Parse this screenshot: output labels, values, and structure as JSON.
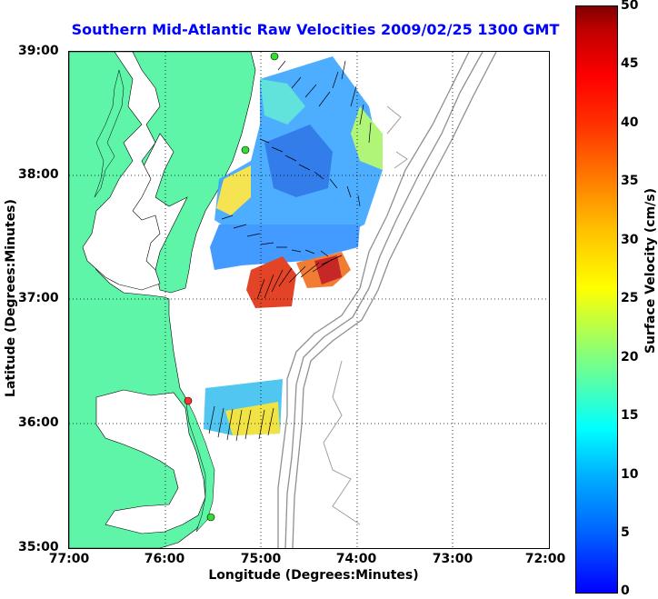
{
  "title": "Southern Mid-Atlantic Raw Velocities 2009/02/25 1300 GMT",
  "axes": {
    "xlabel": "Longitude (Degrees:Minutes)",
    "ylabel": "Latitude (Degrees:Minutes)",
    "xticks": [
      "77:00",
      "76:00",
      "75:00",
      "74:00",
      "73:00",
      "72:00"
    ],
    "yticks": [
      "39:00",
      "38:00",
      "37:00",
      "36:00",
      "35:00"
    ]
  },
  "colorbar": {
    "label": "Surface Velocity (cm/s)",
    "ticks": [
      "50",
      "45",
      "40",
      "35",
      "30",
      "25",
      "20",
      "15",
      "10",
      "5",
      "0"
    ]
  },
  "colors": {
    "title": "#0000ff",
    "land": "#5ef5a8",
    "bathymetry": "#909090"
  }
}
